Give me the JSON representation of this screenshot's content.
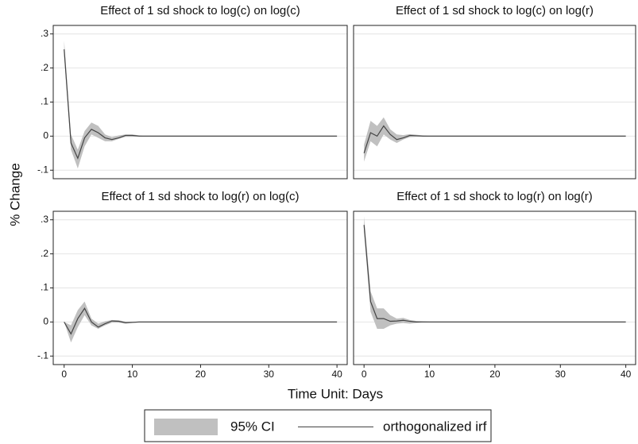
{
  "ylabel": "% Change",
  "xlabel": "Time Unit: Days",
  "chart_data": [
    {
      "type": "irf",
      "title": "Effect of 1 sd shock to log(c) on log(c)",
      "x": [
        0,
        1,
        2,
        3,
        4,
        5,
        6,
        7,
        8,
        9,
        10,
        11,
        12,
        13,
        14,
        15,
        16,
        17,
        18,
        19,
        20,
        21,
        22,
        23,
        24,
        25,
        26,
        27,
        28,
        29,
        30,
        31,
        32,
        33,
        34,
        35,
        36,
        37,
        38,
        39,
        40
      ],
      "series": [
        {
          "name": "95% CI",
          "color": "#c0c0c0",
          "lower": [
            0.235,
            -0.04,
            -0.095,
            -0.03,
            0.005,
            -0.005,
            -0.015,
            -0.015,
            -0.008,
            -0.002,
            -0.002,
            -0.001,
            0,
            0,
            0,
            0,
            0,
            0,
            0,
            0,
            0,
            0,
            0,
            0,
            0,
            0,
            0,
            0,
            0,
            0,
            0,
            0,
            0,
            0,
            0,
            0,
            0,
            0,
            0,
            0,
            0
          ],
          "upper": [
            0.28,
            0.005,
            -0.04,
            0.015,
            0.04,
            0.03,
            0.005,
            -0.003,
            0.002,
            0.005,
            0.005,
            0.002,
            0,
            0,
            0,
            0,
            0,
            0,
            0,
            0,
            0,
            0,
            0,
            0,
            0,
            0,
            0,
            0,
            0,
            0,
            0,
            0,
            0,
            0,
            0,
            0,
            0,
            0,
            0,
            0,
            0
          ]
        },
        {
          "name": "orthogonalized irf",
          "color": "#444444",
          "values": [
            0.255,
            -0.02,
            -0.065,
            -0.005,
            0.02,
            0.01,
            -0.005,
            -0.01,
            -0.005,
            0.002,
            0.002,
            0,
            0,
            0,
            0,
            0,
            0,
            0,
            0,
            0,
            0,
            0,
            0,
            0,
            0,
            0,
            0,
            0,
            0,
            0,
            0,
            0,
            0,
            0,
            0,
            0,
            0,
            0,
            0,
            0,
            0
          ]
        }
      ],
      "xlim": [
        -1.6,
        41.5
      ],
      "ylim": [
        -0.125,
        0.325
      ],
      "yticks": [
        {
          "value": -0.1,
          "label": "-.1"
        },
        0,
        {
          "value": 0.1,
          "label": ".1"
        },
        {
          "value": 0.2,
          "label": ".2"
        },
        {
          "value": 0.3,
          "label": ".3"
        }
      ],
      "grid": true
    },
    {
      "type": "irf",
      "title": "Effect of 1 sd shock to log(c) on log(r)",
      "x": [
        0,
        1,
        2,
        3,
        4,
        5,
        6,
        7,
        8,
        9,
        10,
        11,
        12,
        13,
        14,
        15,
        16,
        17,
        18,
        19,
        20,
        21,
        22,
        23,
        24,
        25,
        26,
        27,
        28,
        29,
        30,
        31,
        32,
        33,
        34,
        35,
        36,
        37,
        38,
        39,
        40
      ],
      "series": [
        {
          "color": "#c0c0c0",
          "lower": [
            -0.075,
            -0.015,
            -0.03,
            0.005,
            -0.01,
            -0.02,
            -0.01,
            -0.003,
            -0.002,
            -0.001,
            0,
            0,
            0,
            0,
            0,
            0,
            0,
            0,
            0,
            0,
            0,
            0,
            0,
            0,
            0,
            0,
            0,
            0,
            0,
            0,
            0,
            0,
            0,
            0,
            0,
            0,
            0,
            0,
            0,
            0,
            0
          ],
          "upper": [
            -0.025,
            0.045,
            0.03,
            0.055,
            0.02,
            0.005,
            0.003,
            0.006,
            0.004,
            0.002,
            0.001,
            0,
            0,
            0,
            0,
            0,
            0,
            0,
            0,
            0,
            0,
            0,
            0,
            0,
            0,
            0,
            0,
            0,
            0,
            0,
            0,
            0,
            0,
            0,
            0,
            0,
            0,
            0,
            0,
            0,
            0
          ]
        },
        {
          "color": "#444444",
          "values": [
            -0.05,
            0.01,
            0,
            0.03,
            0.005,
            -0.01,
            -0.005,
            0.002,
            0.001,
            0,
            0,
            0,
            0,
            0,
            0,
            0,
            0,
            0,
            0,
            0,
            0,
            0,
            0,
            0,
            0,
            0,
            0,
            0,
            0,
            0,
            0,
            0,
            0,
            0,
            0,
            0,
            0,
            0,
            0,
            0,
            0
          ]
        }
      ],
      "xlim": [
        -1.6,
        41.5
      ],
      "ylim": [
        -0.125,
        0.325
      ],
      "yticks": [
        -0.1,
        0,
        0.1,
        0.2,
        0.3
      ],
      "grid": true
    },
    {
      "type": "irf",
      "title": "Effect of 1 sd shock to log(r) on log(c)",
      "x": [
        0,
        1,
        2,
        3,
        4,
        5,
        6,
        7,
        8,
        9,
        10,
        11,
        12,
        13,
        14,
        15,
        16,
        17,
        18,
        19,
        20,
        21,
        22,
        23,
        24,
        25,
        26,
        27,
        28,
        29,
        30,
        31,
        32,
        33,
        34,
        35,
        36,
        37,
        38,
        39,
        40
      ],
      "series": [
        {
          "color": "#c0c0c0",
          "lower": [
            0,
            -0.06,
            -0.015,
            0.02,
            -0.01,
            -0.02,
            -0.01,
            -0.002,
            -0.002,
            -0.005,
            -0.003,
            -0.001,
            0,
            0,
            0,
            0,
            0,
            0,
            0,
            0,
            0,
            0,
            0,
            0,
            0,
            0,
            0,
            0,
            0,
            0,
            0,
            0,
            0,
            0,
            0,
            0,
            0,
            0,
            0,
            0,
            0
          ],
          "upper": [
            0,
            -0.01,
            0.035,
            0.06,
            0.01,
            -0.005,
            0.002,
            0.006,
            0.005,
            0.001,
            0.001,
            0.001,
            0,
            0,
            0,
            0,
            0,
            0,
            0,
            0,
            0,
            0,
            0,
            0,
            0,
            0,
            0,
            0,
            0,
            0,
            0,
            0,
            0,
            0,
            0,
            0,
            0,
            0,
            0,
            0,
            0
          ]
        },
        {
          "color": "#444444",
          "values": [
            0,
            -0.035,
            0.01,
            0.04,
            0,
            -0.015,
            -0.005,
            0.003,
            0.002,
            -0.002,
            -0.001,
            0,
            0,
            0,
            0,
            0,
            0,
            0,
            0,
            0,
            0,
            0,
            0,
            0,
            0,
            0,
            0,
            0,
            0,
            0,
            0,
            0,
            0,
            0,
            0,
            0,
            0,
            0,
            0,
            0,
            0
          ]
        }
      ],
      "xlim": [
        -1.6,
        41.5
      ],
      "ylim": [
        -0.125,
        0.325
      ],
      "xticks": [
        0,
        10,
        20,
        30,
        40
      ],
      "yticks": [
        {
          "value": -0.1,
          "label": "-.1"
        },
        0,
        {
          "value": 0.1,
          "label": ".1"
        },
        {
          "value": 0.2,
          "label": ".2"
        },
        {
          "value": 0.3,
          "label": ".3"
        }
      ],
      "grid": true
    },
    {
      "type": "irf",
      "title": "Effect of 1 sd shock to log(r) on log(r)",
      "x": [
        0,
        1,
        2,
        3,
        4,
        5,
        6,
        7,
        8,
        9,
        10,
        11,
        12,
        13,
        14,
        15,
        16,
        17,
        18,
        19,
        20,
        21,
        22,
        23,
        24,
        25,
        26,
        27,
        28,
        29,
        30,
        31,
        32,
        33,
        34,
        35,
        36,
        37,
        38,
        39,
        40
      ],
      "series": [
        {
          "color": "#c0c0c0",
          "lower": [
            0.265,
            0.03,
            -0.02,
            -0.02,
            -0.01,
            -0.005,
            -0.003,
            -0.005,
            -0.003,
            -0.001,
            0,
            0,
            0,
            0,
            0,
            0,
            0,
            0,
            0,
            0,
            0,
            0,
            0,
            0,
            0,
            0,
            0,
            0,
            0,
            0,
            0,
            0,
            0,
            0,
            0,
            0,
            0,
            0,
            0,
            0,
            0
          ],
          "upper": [
            0.31,
            0.09,
            0.04,
            0.04,
            0.02,
            0.01,
            0.012,
            0.006,
            0.003,
            0.002,
            0.001,
            0,
            0,
            0,
            0,
            0,
            0,
            0,
            0,
            0,
            0,
            0,
            0,
            0,
            0,
            0,
            0,
            0,
            0,
            0,
            0,
            0,
            0,
            0,
            0,
            0,
            0,
            0,
            0,
            0,
            0
          ]
        },
        {
          "color": "#444444",
          "values": [
            0.285,
            0.06,
            0.01,
            0.01,
            0.002,
            0.003,
            0.005,
            0.002,
            0,
            0,
            0,
            0,
            0,
            0,
            0,
            0,
            0,
            0,
            0,
            0,
            0,
            0,
            0,
            0,
            0,
            0,
            0,
            0,
            0,
            0,
            0,
            0,
            0,
            0,
            0,
            0,
            0,
            0,
            0,
            0,
            0
          ]
        }
      ],
      "xlim": [
        -1.6,
        41.5
      ],
      "ylim": [
        -0.125,
        0.325
      ],
      "xticks": [
        0,
        10,
        20,
        30,
        40
      ],
      "yticks": [
        -0.1,
        0,
        0.1,
        0.2,
        0.3
      ],
      "grid": true
    }
  ]
}
